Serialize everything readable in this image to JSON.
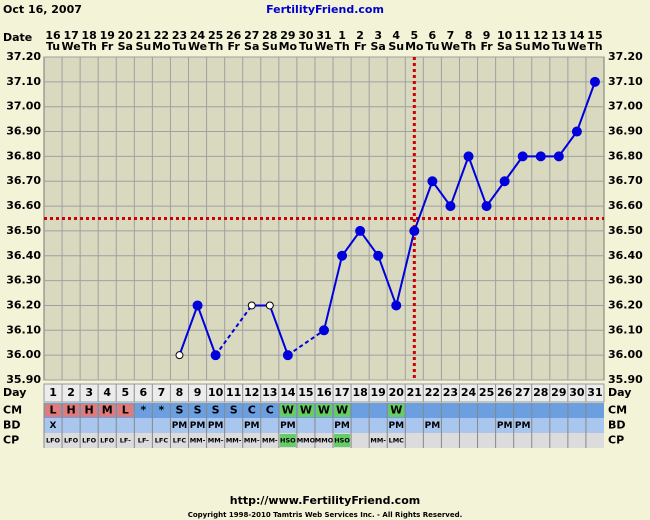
{
  "header": {
    "date": "Oct 16, 2007",
    "site": "FertilityFriend.com"
  },
  "chart_data": {
    "type": "line",
    "date_label": "Date",
    "categories": [
      "16",
      "17",
      "18",
      "19",
      "20",
      "21",
      "22",
      "23",
      "24",
      "25",
      "26",
      "27",
      "28",
      "29",
      "30",
      "31",
      "1",
      "2",
      "3",
      "4",
      "5",
      "6",
      "7",
      "8",
      "9",
      "10",
      "11",
      "12",
      "13",
      "14",
      "15"
    ],
    "weekdays": [
      "Tu",
      "We",
      "Th",
      "Fr",
      "Sa",
      "Su",
      "Mo",
      "Tu",
      "We",
      "Th",
      "Fr",
      "Sa",
      "Su",
      "Mo",
      "Tu",
      "We",
      "Th",
      "Fr",
      "Sa",
      "Su",
      "Mo",
      "Tu",
      "We",
      "Th",
      "Fr",
      "Sa",
      "Su",
      "Mo",
      "Tu",
      "We",
      "Th"
    ],
    "values": [
      null,
      null,
      null,
      null,
      null,
      null,
      null,
      36.0,
      36.2,
      36.0,
      null,
      36.2,
      36.2,
      36.0,
      null,
      36.1,
      36.4,
      36.5,
      36.4,
      36.2,
      36.5,
      36.7,
      36.6,
      36.8,
      36.6,
      36.7,
      36.8,
      36.8,
      36.8,
      36.9,
      37.1
    ],
    "point_styles": [
      null,
      null,
      null,
      null,
      null,
      null,
      null,
      "open",
      "filled",
      "filled",
      null,
      "open",
      "open",
      "filled",
      null,
      "filled",
      "filled",
      "filled",
      "filled",
      "filled",
      "filled",
      "filled",
      "filled",
      "filled",
      "filled",
      "filled",
      "filled",
      "filled",
      "filled",
      "filled",
      "filled"
    ],
    "color": "#0000dd",
    "ylim": [
      35.9,
      37.2
    ],
    "yticks": [
      {
        "value": 35.9,
        "label": "35.90"
      },
      {
        "value": 36.0,
        "label": "36.00"
      },
      {
        "value": 36.1,
        "label": "36.10"
      },
      {
        "value": 36.2,
        "label": "36.20"
      },
      {
        "value": 36.3,
        "label": "36.30"
      },
      {
        "value": 36.4,
        "label": "36.40"
      },
      {
        "value": 36.5,
        "label": "36.50"
      },
      {
        "value": 36.6,
        "label": "36.60"
      },
      {
        "value": 36.7,
        "label": "36.70"
      },
      {
        "value": 36.8,
        "label": "36.80"
      },
      {
        "value": 36.9,
        "label": "36.90"
      },
      {
        "value": 37.0,
        "label": "37.00"
      },
      {
        "value": 37.1,
        "label": "37.10"
      },
      {
        "value": 37.2,
        "label": "37.20"
      }
    ],
    "grid": true,
    "coverline": 36.55,
    "ovulation_cycle_day": 21,
    "reference_color": "#cc0000",
    "day_label": "Day",
    "cycle_days": [
      1,
      2,
      3,
      4,
      5,
      6,
      7,
      8,
      9,
      10,
      11,
      12,
      13,
      14,
      15,
      16,
      17,
      18,
      19,
      20,
      21,
      22,
      23,
      24,
      25,
      26,
      27,
      28,
      29,
      30,
      31
    ],
    "rows": [
      {
        "label": "CM",
        "background": "#6b9fe0",
        "cells": [
          "L",
          "H",
          "H",
          "M",
          "L",
          "*",
          "*",
          "S",
          "S",
          "S",
          "S",
          "C",
          "C",
          "W",
          "W",
          "W",
          "W",
          null,
          null,
          "W",
          null,
          null,
          null,
          null,
          null,
          null,
          null,
          null,
          null,
          null,
          null
        ],
        "highlights": [
          "#e07b7b",
          "#e07b7b",
          "#e07b7b",
          "#e07b7b",
          "#e07b7b",
          null,
          null,
          null,
          null,
          null,
          null,
          null,
          null,
          "#66cc66",
          "#66cc66",
          "#66cc66",
          "#66cc66",
          null,
          null,
          "#66cc66",
          null,
          null,
          null,
          null,
          null,
          null,
          null,
          null,
          null,
          null,
          null
        ]
      },
      {
        "label": "BD",
        "background": "#a9c6ee",
        "cells": [
          "X",
          null,
          null,
          null,
          null,
          null,
          null,
          "PM",
          "PM",
          "PM",
          null,
          "PM",
          null,
          "PM",
          null,
          null,
          "PM",
          null,
          null,
          "PM",
          null,
          "PM",
          null,
          null,
          null,
          "PM",
          "PM",
          null,
          null,
          null,
          null
        ]
      },
      {
        "label": "CP",
        "background": "#dcdcdc",
        "cells": [
          "LFO",
          "LFO",
          "LFO",
          "LFO",
          "LF-",
          "LF-",
          "LFC",
          "LFC",
          "MM-",
          "MM-",
          "MM-",
          "MM-",
          "MM-",
          "HSO",
          "MMO",
          "MMO",
          "HSO",
          null,
          "MM-",
          "LMC",
          null,
          null,
          null,
          null,
          null,
          null,
          null,
          null,
          null,
          null,
          null
        ],
        "highlights": [
          null,
          null,
          null,
          null,
          null,
          null,
          null,
          null,
          null,
          null,
          null,
          null,
          null,
          "#66cc66",
          null,
          null,
          "#66cc66",
          null,
          null,
          null,
          null,
          null,
          null,
          null,
          null,
          null,
          null,
          null,
          null,
          null,
          null
        ]
      }
    ]
  },
  "footer": {
    "url": "http://www.FertilityFriend.com",
    "copyright": "Copyright 1998-2010 Tamtris Web Services Inc. - All Rights Reserved."
  }
}
